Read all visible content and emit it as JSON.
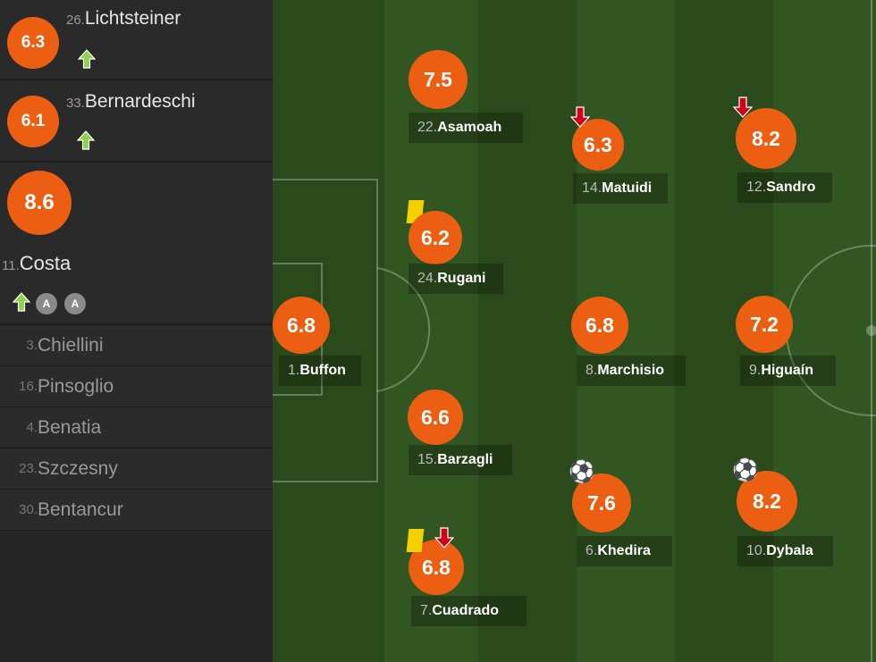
{
  "colors": {
    "rating": "#ec5e12",
    "sub_in": "#8fd14f",
    "sub_out": "#d0021b",
    "yellow_card": "#f5d000"
  },
  "sidebar": {
    "subs": [
      {
        "number": "26.",
        "name": "Lichtsteiner",
        "rating": "6.3",
        "icon": "sub-in-arrow-icon"
      },
      {
        "number": "33.",
        "name": "Bernardeschi",
        "rating": "6.1",
        "icon": "sub-in-arrow-icon"
      },
      {
        "number": "11.",
        "name": "Costa",
        "rating": "8.6",
        "icon": "sub-in-arrow-icon",
        "assists": [
          "A",
          "A"
        ]
      }
    ],
    "bench": [
      {
        "number": "3.",
        "name": "Chiellini"
      },
      {
        "number": "16.",
        "name": "Pinsoglio"
      },
      {
        "number": "4.",
        "name": "Benatia"
      },
      {
        "number": "23.",
        "name": "Szczesny"
      },
      {
        "number": "30.",
        "name": "Bentancur"
      }
    ]
  },
  "pitch": {
    "players": [
      {
        "number": "1. ",
        "name": "Buffon",
        "rating": "6.8"
      },
      {
        "number": "22.",
        "name": "Asamoah",
        "rating": "7.5"
      },
      {
        "number": "24.",
        "name": "Rugani",
        "rating": "6.2",
        "events": [
          "yellow-card"
        ]
      },
      {
        "number": "15.",
        "name": "Barzagli",
        "rating": "6.6"
      },
      {
        "number": "7. ",
        "name": "Cuadrado",
        "rating": "6.8",
        "events": [
          "yellow-card",
          "sub-out"
        ]
      },
      {
        "number": "14.",
        "name": "Matuidi",
        "rating": "6.3",
        "events": [
          "sub-out"
        ]
      },
      {
        "number": "8. ",
        "name": "Marchisio",
        "rating": "6.8"
      },
      {
        "number": "6. ",
        "name": "Khedira",
        "rating": "7.6",
        "events": [
          "goal"
        ]
      },
      {
        "number": "12.",
        "name": "Sandro",
        "rating": "8.2",
        "events": [
          "sub-out"
        ]
      },
      {
        "number": "9. ",
        "name": "Higuaín",
        "rating": "7.2"
      },
      {
        "number": "10.",
        "name": "Dybala",
        "rating": "8.2",
        "events": [
          "goal"
        ]
      }
    ]
  }
}
